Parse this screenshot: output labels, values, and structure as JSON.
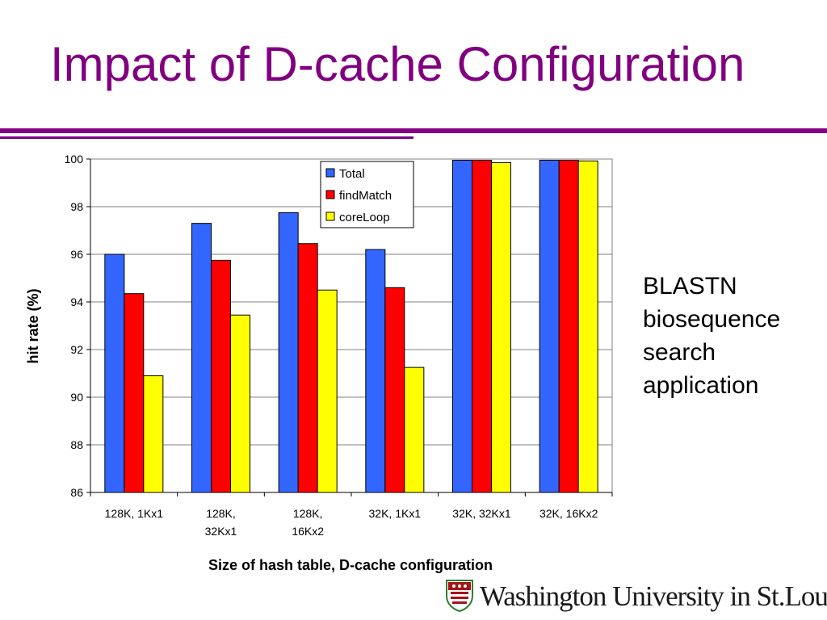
{
  "slide": {
    "title": "Impact of D-cache Configuration",
    "side_note_lines": [
      "BLASTN",
      "biosequence",
      "search",
      "application"
    ],
    "logo_text": "Washington University in St.Louis"
  },
  "colors": {
    "title": "#800080",
    "total": "#3366ff",
    "findMatch": "#ff0000",
    "coreLoop": "#ffff00"
  },
  "chart_data": {
    "type": "bar",
    "title": "",
    "xlabel": "Size of hash table, D-cache configuration",
    "ylabel": "hit rate (%)",
    "ylim": [
      86,
      100
    ],
    "yticks": [
      86,
      88,
      90,
      92,
      94,
      96,
      98,
      100
    ],
    "grid": true,
    "legend_position": "top-center",
    "categories": [
      "128K, 1Kx1",
      "128K, 32Kx1",
      "128K, 16Kx2",
      "32K, 1Kx1",
      "32K, 32Kx1",
      "32K, 16Kx2"
    ],
    "category_lines": [
      [
        "128K, 1Kx1"
      ],
      [
        "128K,",
        "32Kx1"
      ],
      [
        "128K,",
        "16Kx2"
      ],
      [
        "32K, 1Kx1"
      ],
      [
        "32K, 32Kx1"
      ],
      [
        "32K, 16Kx2"
      ]
    ],
    "series": [
      {
        "name": "Total",
        "color": "#3366ff",
        "values": [
          96.0,
          97.3,
          97.75,
          96.2,
          99.95,
          99.95
        ]
      },
      {
        "name": "findMatch",
        "color": "#ff0000",
        "values": [
          94.35,
          95.75,
          96.45,
          94.6,
          99.95,
          99.95
        ]
      },
      {
        "name": "coreLoop",
        "color": "#ffff00",
        "values": [
          90.9,
          93.45,
          94.5,
          91.25,
          99.85,
          99.92
        ]
      }
    ]
  }
}
